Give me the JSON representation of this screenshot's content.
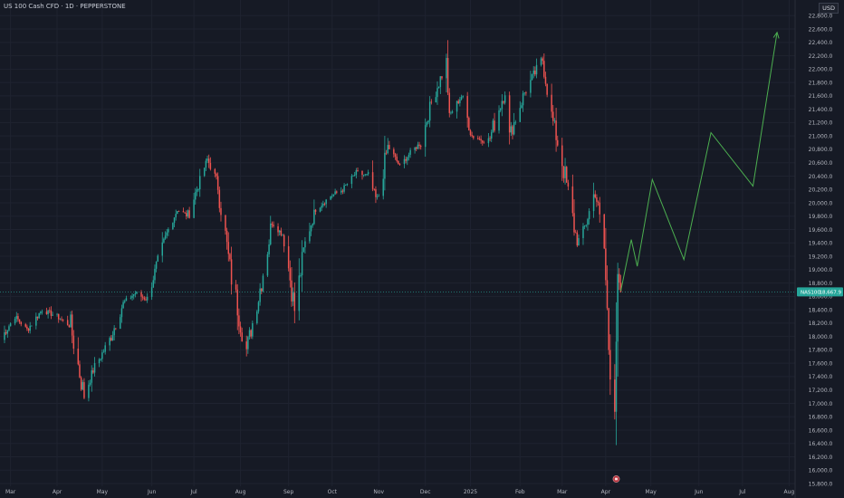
{
  "header": {
    "title": "US 100 Cash CFD · 1D · PEPPERSTONE",
    "currency": "USD"
  },
  "colors": {
    "background": "#161a25",
    "grid": "#1f2330",
    "up": "#26a69a",
    "down": "#ef5350",
    "projection": "#4caf50",
    "axis_text": "#b2b5be"
  },
  "price_tag": {
    "label": "NAS100",
    "value": "18,667.9"
  },
  "marker": {
    "icon": "event-marker-icon"
  },
  "chart_data": {
    "type": "candlestick",
    "title": "US 100 Cash CFD · 1D · PEPPERSTONE",
    "ylim": [
      15760,
      22980
    ],
    "yticks": [
      15800,
      16000,
      16200,
      16400,
      16600,
      16800,
      17000,
      17200,
      17400,
      17600,
      17800,
      18000,
      18200,
      18400,
      18600,
      18800,
      19000,
      19200,
      19400,
      19600,
      19800,
      20000,
      20200,
      20400,
      20600,
      20800,
      21000,
      21200,
      21400,
      21600,
      21800,
      22000,
      22200,
      22400,
      22600,
      22800
    ],
    "ytick_labels": [
      "15,800.0",
      "16,000.0",
      "16,200.0",
      "16,400.0",
      "16,600.0",
      "16,800.0",
      "17,000.0",
      "17,200.0",
      "17,400.0",
      "17,600.0",
      "17,800.0",
      "18,000.0",
      "18,200.0",
      "18,400.0",
      "18,600.0",
      "18,800.0",
      "19,000.0",
      "19,200.0",
      "19,400.0",
      "19,600.0",
      "19,800.0",
      "20,000.0",
      "20,200.0",
      "20,400.0",
      "20,600.0",
      "20,800.0",
      "21,000.0",
      "21,200.0",
      "21,400.0",
      "21,600.0",
      "21,800.0",
      "22,000.0",
      "22,200.0",
      "22,400.0",
      "22,600.0",
      "22,800.0"
    ],
    "x_start": "2024-02-23",
    "x_end": "2025-08-05",
    "xticks": [
      {
        "label": "Mar",
        "date": "2024-03-01"
      },
      {
        "label": "Apr",
        "date": "2024-04-01"
      },
      {
        "label": "May",
        "date": "2024-05-01"
      },
      {
        "label": "Jun",
        "date": "2024-06-03"
      },
      {
        "label": "Jul",
        "date": "2024-07-01"
      },
      {
        "label": "Aug",
        "date": "2024-08-01"
      },
      {
        "label": "Sep",
        "date": "2024-09-02"
      },
      {
        "label": "Oct",
        "date": "2024-10-01"
      },
      {
        "label": "Nov",
        "date": "2024-11-01"
      },
      {
        "label": "Dec",
        "date": "2024-12-02"
      },
      {
        "label": "2025",
        "date": "2025-01-01"
      },
      {
        "label": "Feb",
        "date": "2025-02-03"
      },
      {
        "label": "Mar",
        "date": "2025-03-03"
      },
      {
        "label": "Apr",
        "date": "2025-04-01"
      },
      {
        "label": "May",
        "date": "2025-05-01"
      },
      {
        "label": "Jun",
        "date": "2025-06-02"
      },
      {
        "label": "Jul",
        "date": "2025-07-01"
      },
      {
        "label": "Aug",
        "date": "2025-08-01"
      }
    ],
    "price_path": [
      [
        "2024-02-23",
        17950
      ],
      [
        "2024-03-04",
        18300
      ],
      [
        "2024-03-12",
        18100
      ],
      [
        "2024-03-22",
        18400
      ],
      [
        "2024-04-01",
        18300
      ],
      [
        "2024-04-10",
        18150
      ],
      [
        "2024-04-19",
        17100
      ],
      [
        "2024-04-25",
        17500
      ],
      [
        "2024-05-06",
        17950
      ],
      [
        "2024-05-15",
        18500
      ],
      [
        "2024-05-23",
        18650
      ],
      [
        "2024-05-31",
        18550
      ],
      [
        "2024-06-06",
        19050
      ],
      [
        "2024-06-14",
        19600
      ],
      [
        "2024-06-20",
        19900
      ],
      [
        "2024-06-27",
        19800
      ],
      [
        "2024-07-05",
        20350
      ],
      [
        "2024-07-10",
        20650
      ],
      [
        "2024-07-17",
        20300
      ],
      [
        "2024-07-25",
        19000
      ],
      [
        "2024-08-05",
        17800
      ],
      [
        "2024-08-13",
        18600
      ],
      [
        "2024-08-22",
        19700
      ],
      [
        "2024-08-30",
        19500
      ],
      [
        "2024-09-06",
        18400
      ],
      [
        "2024-09-13",
        19400
      ],
      [
        "2024-09-20",
        19900
      ],
      [
        "2024-09-30",
        20100
      ],
      [
        "2024-10-08",
        20200
      ],
      [
        "2024-10-17",
        20450
      ],
      [
        "2024-10-25",
        20400
      ],
      [
        "2024-10-31",
        20000
      ],
      [
        "2024-11-07",
        20850
      ],
      [
        "2024-11-15",
        20550
      ],
      [
        "2024-11-22",
        20750
      ],
      [
        "2024-11-29",
        20900
      ],
      [
        "2024-12-06",
        21500
      ],
      [
        "2024-12-16",
        22100
      ],
      [
        "2024-12-18",
        21300
      ],
      [
        "2024-12-26",
        21600
      ],
      [
        "2025-01-02",
        21000
      ],
      [
        "2025-01-13",
        20900
      ],
      [
        "2025-01-24",
        21700
      ],
      [
        "2025-01-27",
        21000
      ],
      [
        "2025-02-06",
        21650
      ],
      [
        "2025-02-18",
        22150
      ],
      [
        "2025-02-24",
        21300
      ],
      [
        "2025-03-04",
        20500
      ],
      [
        "2025-03-13",
        19400
      ],
      [
        "2025-03-19",
        19700
      ],
      [
        "2025-03-25",
        20200
      ],
      [
        "2025-03-31",
        19300
      ],
      [
        "2025-04-04",
        17400
      ],
      [
        "2025-04-07",
        17100
      ],
      [
        "2025-04-09",
        18900
      ],
      [
        "2025-04-11",
        18667.9
      ]
    ],
    "projection": [
      [
        "2025-04-11",
        18680
      ],
      [
        "2025-04-18",
        19450
      ],
      [
        "2025-04-22",
        19050
      ],
      [
        "2025-05-02",
        20350
      ],
      [
        "2025-05-23",
        19150
      ],
      [
        "2025-06-10",
        21050
      ],
      [
        "2025-07-08",
        20250
      ],
      [
        "2025-07-24",
        22550
      ]
    ]
  }
}
